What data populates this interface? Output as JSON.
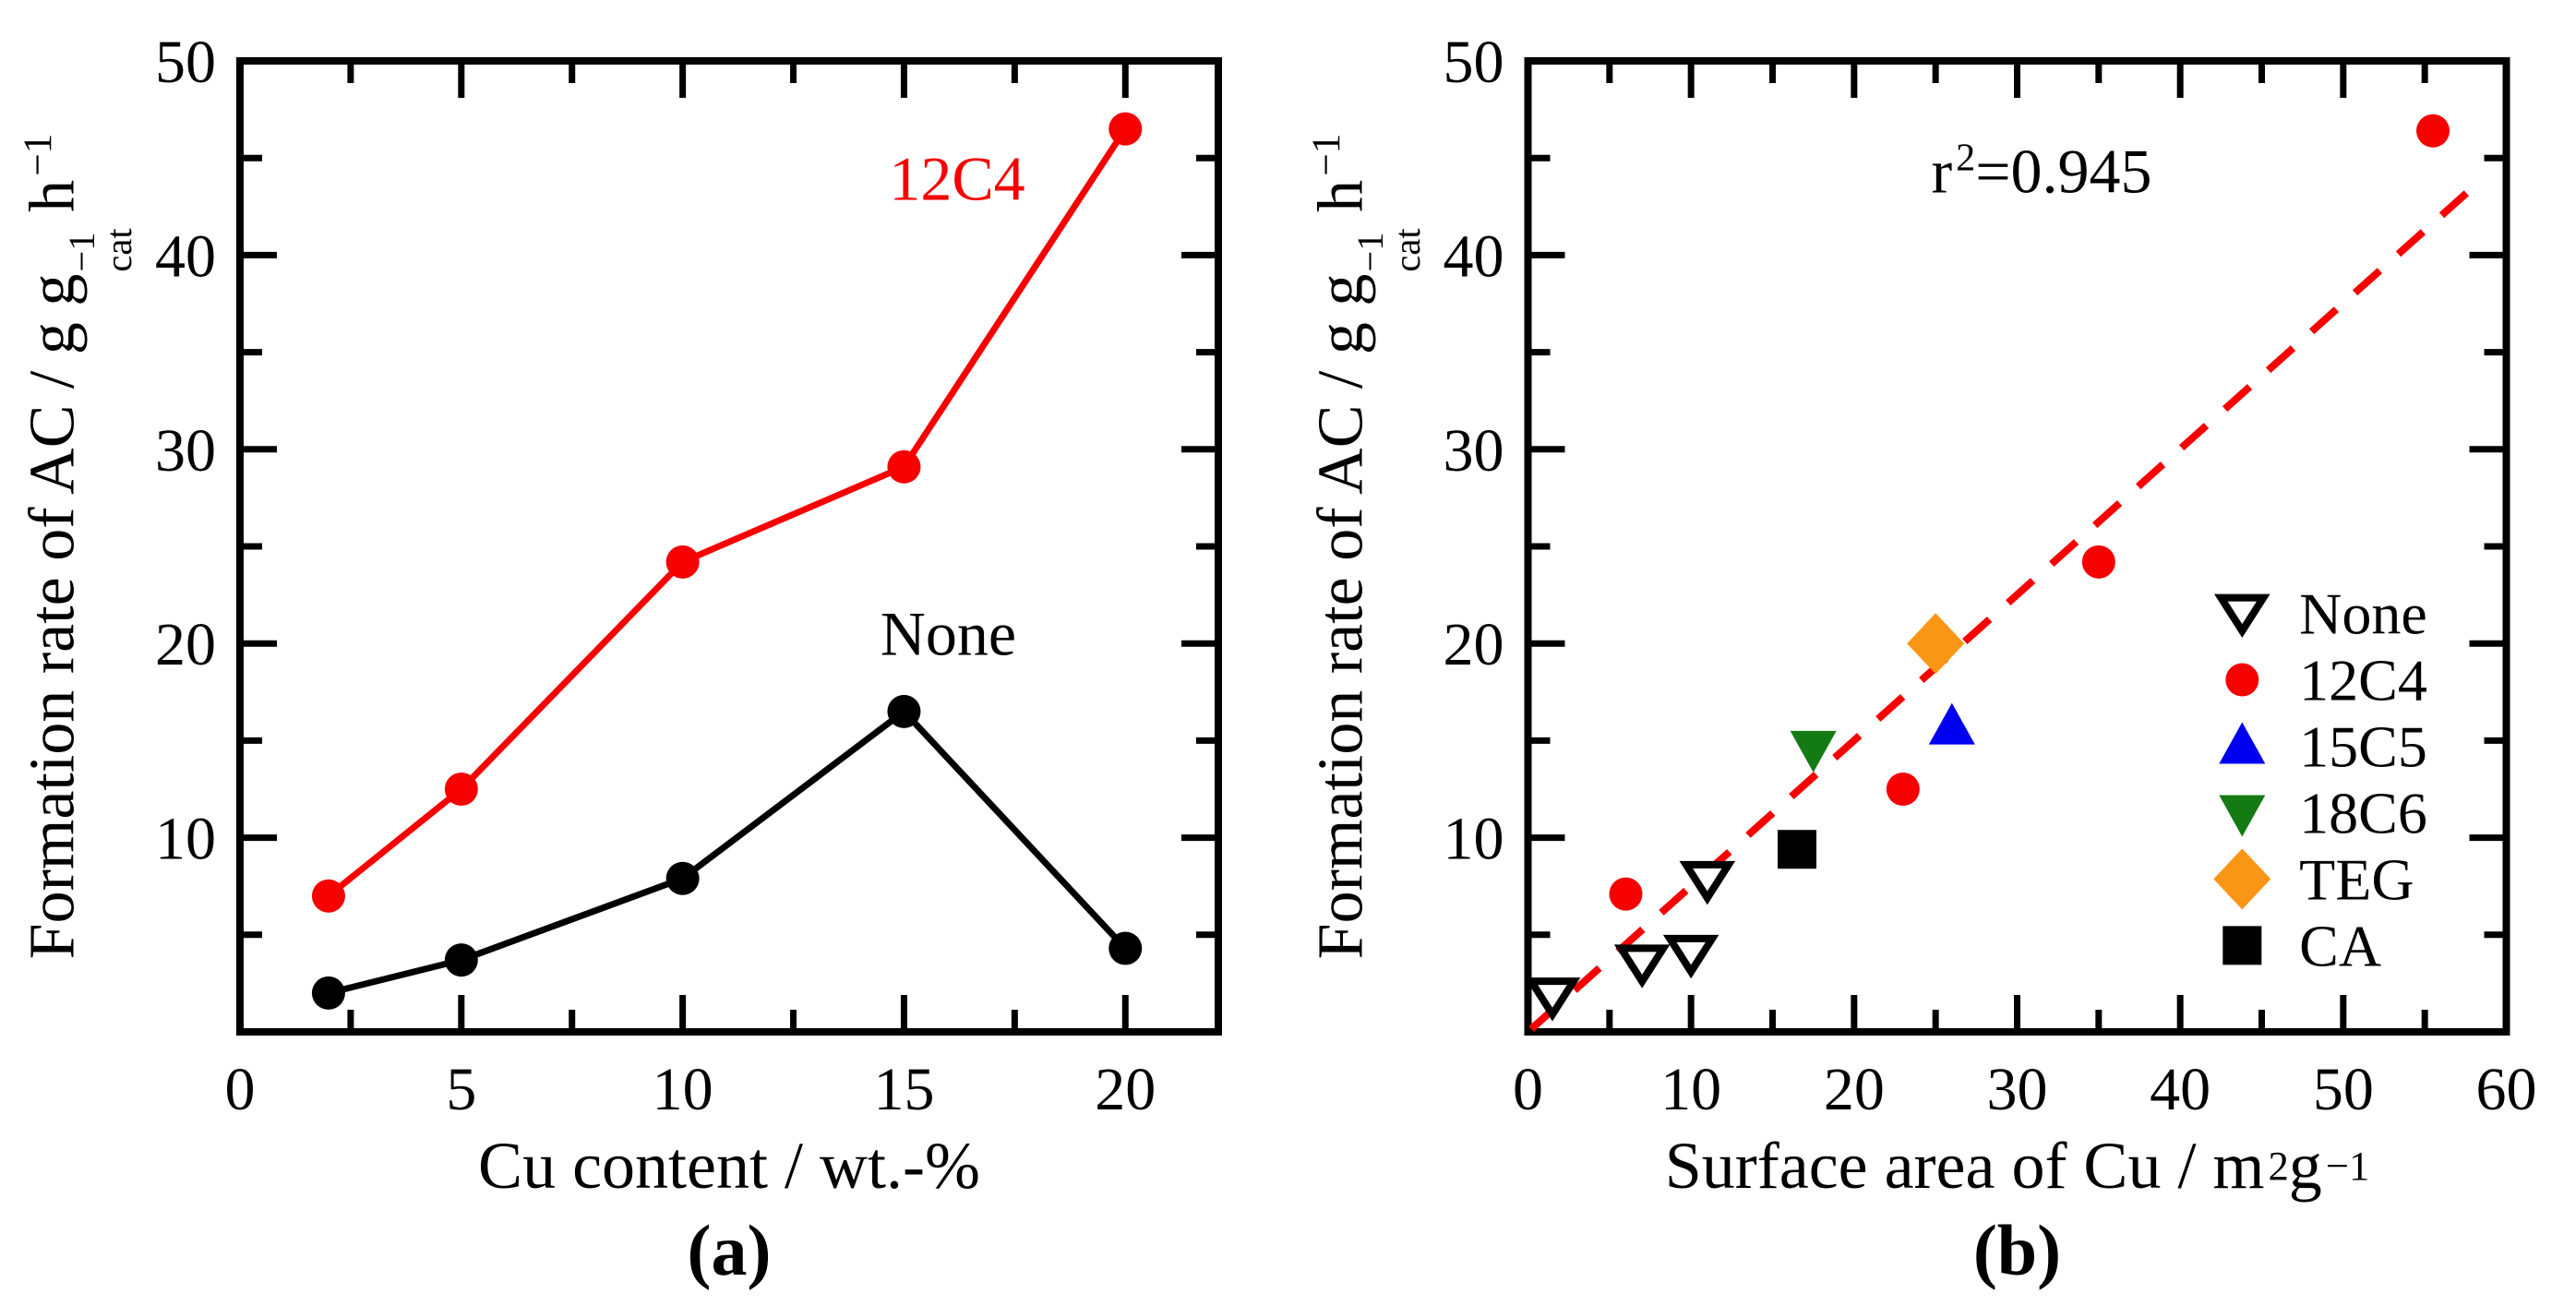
{
  "figure_background": "#ffffff",
  "colors": {
    "black": "#000000",
    "red": "#f60000",
    "blue": "#0000f0",
    "green": "#147a14",
    "orange": "#fa9616",
    "white": "#ffffff"
  },
  "chart_data": [
    {
      "id": "a",
      "type": "line",
      "panel_label": "(a)",
      "xlabel_segments": [
        {
          "t": "Cu content / wt.-%"
        }
      ],
      "ylabel_segments": [
        {
          "t": "Formation rate of AC / g g"
        },
        {
          "stack": [
            "−1",
            "cat"
          ]
        },
        {
          "t": " h"
        },
        {
          "sup": "−1"
        }
      ],
      "xlim": [
        0,
        22.1
      ],
      "ylim": [
        0,
        50
      ],
      "x_ticks": [
        0,
        5,
        10,
        15,
        20
      ],
      "x_minor": [
        2.5,
        7.5,
        12.5,
        17.5
      ],
      "y_ticks": [
        10,
        20,
        30,
        40,
        50
      ],
      "y_minor": [
        5,
        15,
        25,
        35,
        45
      ],
      "grid": false,
      "series": [
        {
          "name": "12C4",
          "color": "red",
          "marker": "circle",
          "line": true,
          "points": [
            [
              2,
              7.0
            ],
            [
              5,
              12.5
            ],
            [
              10,
              24.2
            ],
            [
              15,
              29.1
            ],
            [
              20,
              46.5
            ]
          ]
        },
        {
          "name": "None",
          "color": "black",
          "marker": "circle",
          "line": true,
          "points": [
            [
              2,
              2.0
            ],
            [
              5,
              3.7
            ],
            [
              10,
              7.9
            ],
            [
              15,
              16.5
            ],
            [
              20,
              4.3
            ]
          ]
        }
      ],
      "annotations": [
        {
          "name": "label-12c4",
          "segments": [
            {
              "t": "12C4"
            }
          ],
          "color": "red",
          "x": 16.2,
          "y": 43.9
        },
        {
          "name": "label-none",
          "segments": [
            {
              "t": "None"
            }
          ],
          "color": "black",
          "x": 16.0,
          "y": 20.5
        }
      ]
    },
    {
      "id": "b",
      "type": "scatter",
      "panel_label": "(b)",
      "xlabel_segments": [
        {
          "t": "Surface area of Cu / m"
        },
        {
          "sup": "2"
        },
        {
          "t": " g"
        },
        {
          "sup": "−1"
        }
      ],
      "ylabel_segments": [
        {
          "t": "Formation rate of AC / g g"
        },
        {
          "stack": [
            "−1",
            "cat"
          ]
        },
        {
          "t": " h"
        },
        {
          "sup": "−1"
        }
      ],
      "xlim": [
        0,
        60
      ],
      "ylim": [
        0,
        50
      ],
      "x_ticks": [
        0,
        10,
        20,
        30,
        40,
        50,
        60
      ],
      "x_minor": [
        5,
        15,
        25,
        35,
        45,
        55
      ],
      "y_ticks": [
        10,
        20,
        30,
        40,
        50
      ],
      "y_minor": [
        5,
        15,
        25,
        35,
        45
      ],
      "grid": false,
      "series": [
        {
          "name": "None",
          "color": "black",
          "marker": "triangle-down-open",
          "line": false,
          "points": [
            [
              1.5,
              1.8
            ],
            [
              7,
              3.5
            ],
            [
              10,
              4.0
            ],
            [
              11,
              7.8
            ]
          ]
        },
        {
          "name": "12C4",
          "color": "red",
          "marker": "circle",
          "line": false,
          "points": [
            [
              6,
              7.1
            ],
            [
              23,
              12.5
            ],
            [
              35,
              24.2
            ],
            [
              55.5,
              46.4
            ]
          ]
        },
        {
          "name": "15C5",
          "color": "blue",
          "marker": "triangle-up",
          "line": false,
          "points": [
            [
              26,
              15.7
            ]
          ]
        },
        {
          "name": "18C6",
          "color": "green",
          "marker": "triangle-down",
          "line": false,
          "points": [
            [
              17.5,
              14.6
            ]
          ]
        },
        {
          "name": "TEG",
          "color": "orange",
          "marker": "diamond",
          "line": false,
          "points": [
            [
              25,
              20.0
            ]
          ]
        },
        {
          "name": "CA",
          "color": "black",
          "marker": "square",
          "line": false,
          "points": [
            [
              16.5,
              9.4
            ]
          ]
        }
      ],
      "trendline": {
        "x1": 0.2,
        "y1": 0.15,
        "x2": 58.5,
        "y2": 43.9,
        "color": "red",
        "dashed": true
      },
      "annotations": [
        {
          "name": "r-squared",
          "segments": [
            {
              "t": "r"
            },
            {
              "sup": "2"
            },
            {
              "t": "=0.945"
            }
          ],
          "color": "black",
          "x": 31.5,
          "y": 44.3
        }
      ],
      "legend": {
        "position": "inside-right",
        "marker_x": 43.8,
        "label_x": 47.3,
        "y_start": 21.55,
        "dy": 3.42,
        "entries": [
          {
            "label": "None",
            "series": "None"
          },
          {
            "label": "12C4",
            "series": "12C4"
          },
          {
            "label": "15C5",
            "series": "15C5"
          },
          {
            "label": "18C6",
            "series": "18C6"
          },
          {
            "label": "TEG",
            "series": "TEG"
          },
          {
            "label": "CA",
            "series": "CA"
          }
        ]
      }
    }
  ]
}
